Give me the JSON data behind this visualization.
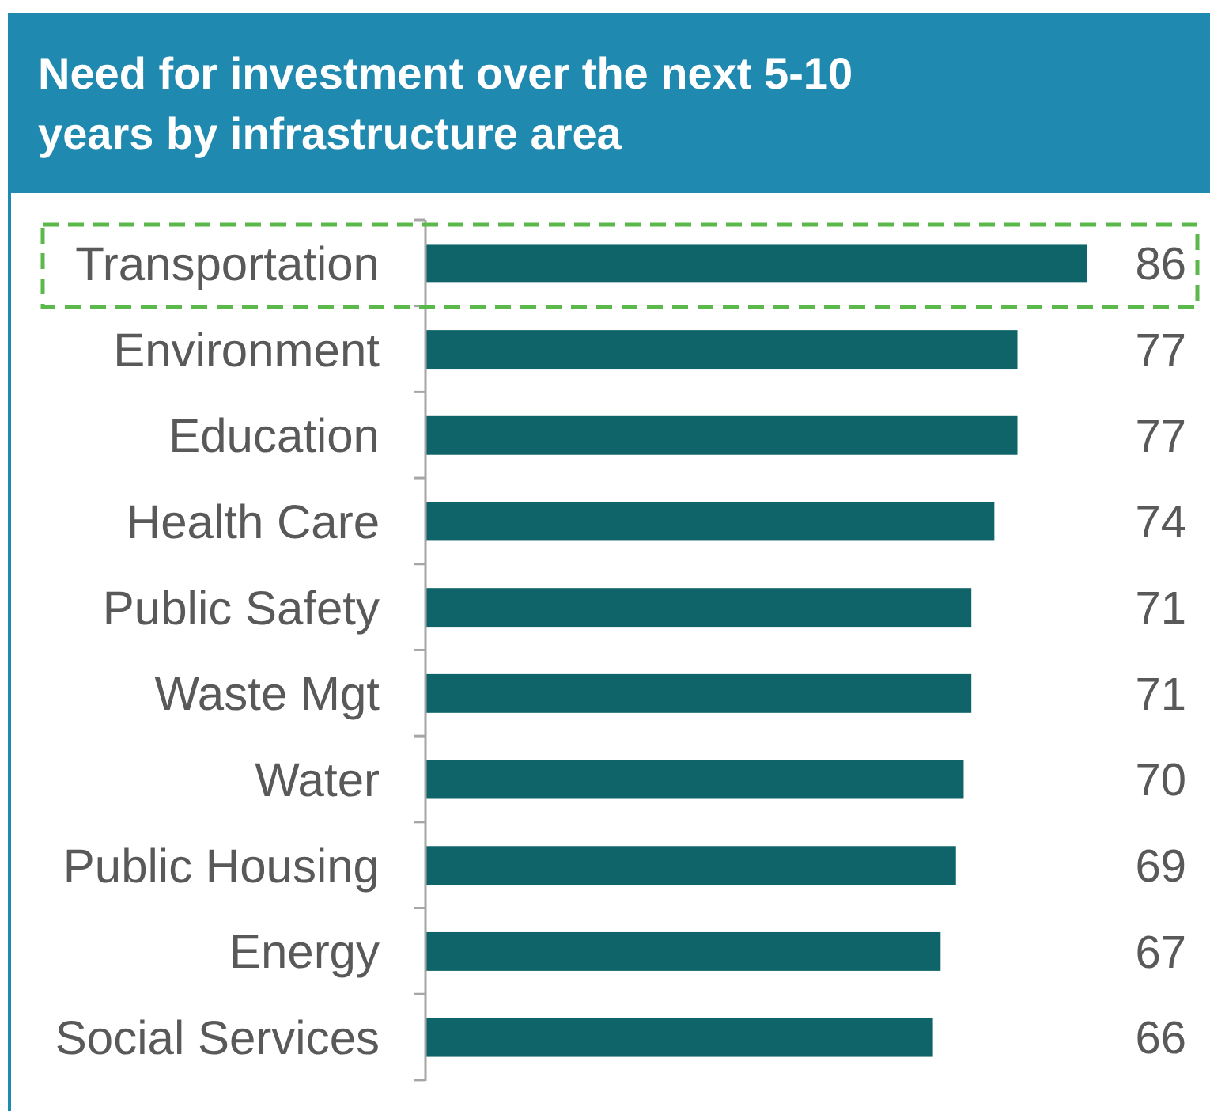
{
  "chart_data": {
    "type": "bar",
    "orientation": "horizontal",
    "title": "Need for investment over the next 5-10 years by infrastructure area",
    "categories": [
      "Transportation",
      "Environment",
      "Education",
      "Health Care",
      "Public Safety",
      "Waste Mgt",
      "Water",
      "Public Housing",
      "Energy",
      "Social Services"
    ],
    "values": [
      86,
      77,
      77,
      74,
      71,
      71,
      70,
      69,
      67,
      66
    ],
    "color": "#0e6468",
    "data_labels": true
  }
}
